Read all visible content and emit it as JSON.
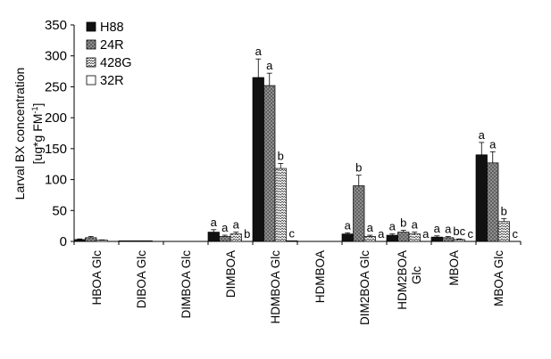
{
  "chart_data": {
    "type": "bar",
    "title": "",
    "xlabel": "",
    "ylabel": [
      "Larval BX concentration",
      "[ug*g FM",
      "-1",
      "]"
    ],
    "ylim": [
      0,
      350
    ],
    "yticks": [
      "0",
      "50",
      "100",
      "150",
      "200",
      "250",
      "300",
      "350"
    ],
    "grid": false,
    "legend_position": "top-left",
    "categories": [
      [
        "HBOA Glc"
      ],
      [
        "DIBOA Glc"
      ],
      [
        "DIMBOA Glc"
      ],
      [
        "DIMBOA"
      ],
      [
        "HDMBOA Glc"
      ],
      [
        "HDMBOA"
      ],
      [
        "DIM2BOA Glc"
      ],
      [
        "HDM2BOA",
        "Glc"
      ],
      [
        "MBOA"
      ],
      [
        "MBOA Glc"
      ]
    ],
    "series": [
      {
        "name": "H88",
        "pattern": "solid-black",
        "values": [
          3,
          1,
          0,
          15,
          265,
          0,
          12,
          10,
          7,
          140
        ],
        "errors": [
          1,
          0,
          0,
          4,
          30,
          0,
          2,
          2,
          2,
          20
        ],
        "letters": [
          "",
          "",
          "",
          "a",
          "a",
          "",
          "a",
          "a",
          "a",
          "a"
        ]
      },
      {
        "name": "24R",
        "pattern": "grey-cross",
        "values": [
          6,
          1,
          0,
          8,
          252,
          0,
          90,
          15,
          6,
          127
        ],
        "errors": [
          2,
          0,
          0,
          2,
          20,
          0,
          17,
          3,
          2,
          18
        ],
        "letters": [
          "",
          "",
          "",
          "a",
          "a",
          "",
          "b",
          "b",
          "a",
          "a"
        ]
      },
      {
        "name": "428G",
        "pattern": "zigzag",
        "values": [
          2,
          1,
          0,
          12,
          118,
          0,
          8,
          12,
          3,
          32
        ],
        "errors": [
          0.5,
          0,
          0,
          3,
          8,
          0,
          2,
          3,
          1,
          5
        ],
        "letters": [
          "",
          "",
          "",
          "a",
          "b",
          "",
          "a",
          "a",
          "bc",
          "b"
        ]
      },
      {
        "name": "32R",
        "pattern": "white",
        "values": [
          0,
          0,
          0,
          0,
          1,
          0,
          0,
          0,
          0,
          0
        ],
        "errors": [
          0,
          0,
          0,
          0,
          0,
          0,
          0,
          0,
          0,
          0
        ],
        "letters": [
          "",
          "",
          "",
          "b",
          "c",
          "",
          "a",
          "a",
          "c",
          "c"
        ]
      }
    ]
  }
}
